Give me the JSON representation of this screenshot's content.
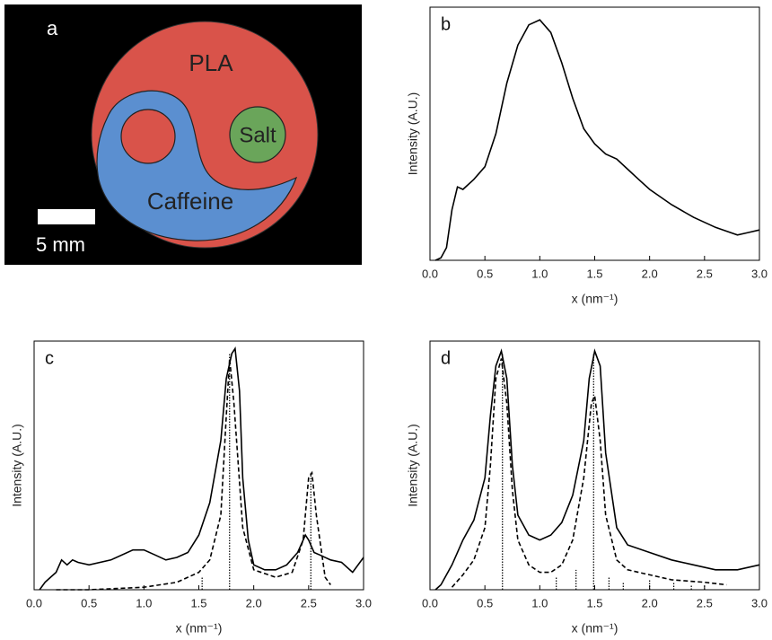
{
  "image_panel": {
    "panel_label": "a",
    "regions": [
      "PLA",
      "Salt",
      "Caffeine"
    ],
    "scale_bar": "5 mm"
  },
  "chart_data": [
    {
      "type": "line",
      "panel_label": "b",
      "xlabel": "x (nm⁻¹)",
      "ylabel": "Intensity (A.U.)",
      "xlim": [
        0,
        3
      ],
      "ylim": [
        0,
        1
      ],
      "xticks": [
        {
          "value": 0,
          "label": "0.0"
        },
        0.5,
        {
          "value": 1,
          "label": "1.0"
        },
        1.5,
        {
          "value": 2,
          "label": "2.0"
        },
        2.5,
        {
          "value": 3,
          "label": "3.0"
        }
      ],
      "series": [
        {
          "style": "solid",
          "color": "#000000",
          "x": [
            0.05,
            0.1,
            0.15,
            0.2,
            0.25,
            0.3,
            0.4,
            0.5,
            0.6,
            0.7,
            0.8,
            0.9,
            1.0,
            1.1,
            1.2,
            1.3,
            1.4,
            1.5,
            1.6,
            1.7,
            1.8,
            1.9,
            2.0,
            2.2,
            2.4,
            2.6,
            2.8,
            2.9,
            3.0
          ],
          "values": [
            0,
            0.01,
            0.05,
            0.2,
            0.29,
            0.28,
            0.32,
            0.37,
            0.5,
            0.7,
            0.85,
            0.93,
            0.95,
            0.9,
            0.78,
            0.64,
            0.52,
            0.46,
            0.42,
            0.4,
            0.36,
            0.32,
            0.28,
            0.22,
            0.17,
            0.13,
            0.1,
            0.11,
            0.12
          ]
        }
      ]
    },
    {
      "type": "line",
      "panel_label": "c",
      "xlabel": "x (nm⁻¹)",
      "ylabel": "Intensity (A.U.)",
      "xlim": [
        0,
        3
      ],
      "ylim": [
        0,
        1
      ],
      "xticks": [
        {
          "value": 0,
          "label": "0.0"
        },
        0.5,
        {
          "value": 1,
          "label": "1.0"
        },
        1.5,
        {
          "value": 2,
          "label": "2.0"
        },
        2.5,
        {
          "value": 3,
          "label": "3.0"
        }
      ],
      "series": [
        {
          "style": "solid",
          "color": "#000000",
          "x": [
            0.05,
            0.1,
            0.15,
            0.2,
            0.25,
            0.3,
            0.35,
            0.4,
            0.5,
            0.7,
            0.9,
            1.0,
            1.1,
            1.2,
            1.3,
            1.4,
            1.5,
            1.6,
            1.7,
            1.75,
            1.8,
            1.83,
            1.87,
            1.9,
            1.95,
            2.0,
            2.1,
            2.2,
            2.3,
            2.4,
            2.47,
            2.5,
            2.55,
            2.6,
            2.7,
            2.8,
            2.9,
            3.0
          ],
          "values": [
            0,
            0.03,
            0.05,
            0.07,
            0.12,
            0.1,
            0.12,
            0.11,
            0.1,
            0.12,
            0.16,
            0.16,
            0.14,
            0.12,
            0.13,
            0.15,
            0.22,
            0.35,
            0.6,
            0.85,
            0.95,
            0.97,
            0.8,
            0.45,
            0.2,
            0.1,
            0.08,
            0.08,
            0.1,
            0.15,
            0.22,
            0.2,
            0.15,
            0.14,
            0.12,
            0.11,
            0.07,
            0.13
          ]
        },
        {
          "style": "dashed",
          "color": "#000000",
          "x": [
            0.2,
            0.5,
            1.0,
            1.3,
            1.5,
            1.6,
            1.7,
            1.75,
            1.78,
            1.82,
            1.9,
            2.0,
            2.2,
            2.35,
            2.45,
            2.5,
            2.53,
            2.57,
            2.65,
            2.7
          ],
          "values": [
            0,
            0,
            0.01,
            0.03,
            0.07,
            0.12,
            0.3,
            0.7,
            0.93,
            0.75,
            0.25,
            0.08,
            0.05,
            0.07,
            0.2,
            0.45,
            0.47,
            0.3,
            0.05,
            0.02
          ]
        },
        {
          "style": "sticks",
          "color": "#000000",
          "x": [
            1.53,
            1.78,
            2.52
          ],
          "values": [
            0.05,
            0.95,
            0.47
          ]
        }
      ]
    },
    {
      "type": "line",
      "panel_label": "d",
      "xlabel": "x (nm⁻¹)",
      "ylabel": "Intensity (A.U.)",
      "xlim": [
        0,
        3
      ],
      "ylim": [
        0,
        1
      ],
      "xticks": [
        {
          "value": 0,
          "label": "0.0"
        },
        0.5,
        {
          "value": 1,
          "label": "1.0"
        },
        1.5,
        {
          "value": 2,
          "label": "2.0"
        },
        2.5,
        {
          "value": 3,
          "label": "3.0"
        }
      ],
      "series": [
        {
          "style": "solid",
          "color": "#000000",
          "x": [
            0.05,
            0.1,
            0.2,
            0.3,
            0.4,
            0.5,
            0.55,
            0.6,
            0.65,
            0.7,
            0.75,
            0.8,
            0.9,
            1.0,
            1.1,
            1.2,
            1.3,
            1.4,
            1.45,
            1.5,
            1.55,
            1.6,
            1.7,
            1.8,
            2.0,
            2.2,
            2.4,
            2.6,
            2.8,
            3.0
          ],
          "values": [
            0,
            0.02,
            0.1,
            0.2,
            0.28,
            0.45,
            0.7,
            0.9,
            0.96,
            0.85,
            0.5,
            0.3,
            0.22,
            0.2,
            0.22,
            0.27,
            0.38,
            0.6,
            0.85,
            0.96,
            0.9,
            0.55,
            0.25,
            0.18,
            0.15,
            0.12,
            0.1,
            0.08,
            0.08,
            0.1
          ]
        },
        {
          "style": "dashed",
          "color": "#000000",
          "x": [
            0.2,
            0.3,
            0.4,
            0.5,
            0.55,
            0.6,
            0.65,
            0.7,
            0.75,
            0.8,
            0.9,
            1.0,
            1.1,
            1.2,
            1.3,
            1.4,
            1.47,
            1.5,
            1.55,
            1.6,
            1.7,
            1.8,
            2.0,
            2.2,
            2.5,
            2.7
          ],
          "values": [
            0.01,
            0.06,
            0.12,
            0.25,
            0.5,
            0.85,
            0.93,
            0.75,
            0.4,
            0.2,
            0.1,
            0.07,
            0.07,
            0.1,
            0.2,
            0.45,
            0.75,
            0.78,
            0.6,
            0.3,
            0.12,
            0.08,
            0.06,
            0.04,
            0.03,
            0.02
          ]
        },
        {
          "style": "sticks",
          "color": "#000000",
          "x": [
            0.66,
            1.15,
            1.33,
            1.49,
            1.63,
            1.76,
            2.0,
            2.22,
            2.38,
            2.5
          ],
          "values": [
            0.95,
            0.05,
            0.08,
            0.95,
            0.05,
            0.03,
            0.04,
            0.03,
            0.02,
            0.02
          ]
        }
      ]
    }
  ]
}
